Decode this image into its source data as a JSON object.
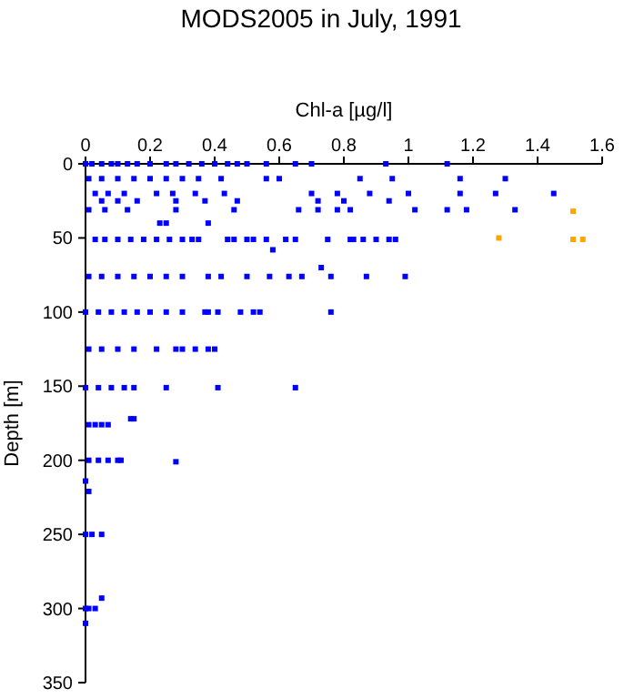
{
  "chart_data": {
    "type": "scatter",
    "title": "MODS2005 in July, 1991",
    "xlabel": "Chl-a [µg/l]",
    "ylabel": "Depth [m]",
    "xlim": [
      0,
      1.6
    ],
    "xticks": [
      0,
      0.2,
      0.4,
      0.6,
      0.8,
      1,
      1.2,
      1.4,
      1.6
    ],
    "ylim": [
      350,
      0
    ],
    "yticks": [
      0,
      50,
      100,
      150,
      200,
      250,
      300,
      350
    ],
    "marker": "square",
    "grid": false,
    "series": [
      {
        "color": "#0000ff",
        "x": [
          0,
          0.02,
          0.05,
          0.08,
          0.1,
          0.13,
          0.16,
          0.2,
          0.25,
          0.28,
          0.32,
          0.36,
          0.4,
          0.44,
          0.47,
          0.5,
          0.56,
          0.65,
          0.7,
          0.93,
          1.12,
          0.01,
          0.05,
          0.1,
          0.15,
          0.2,
          0.25,
          0.3,
          0.35,
          0.42,
          0.56,
          0.6,
          0.85,
          0.95,
          1.16,
          1.3,
          0.03,
          0.07,
          0.12,
          0.22,
          0.27,
          0.34,
          0.43,
          0.7,
          0.78,
          0.88,
          1,
          1.16,
          1.27,
          1.45,
          0.05,
          0.1,
          0.16,
          0.28,
          0.37,
          0.47,
          0.72,
          0.8,
          0.94,
          0.01,
          0.06,
          0.13,
          0.28,
          0.46,
          0.66,
          0.72,
          0.78,
          0.82,
          1.02,
          1.12,
          1.18,
          1.33,
          0.23,
          0.25,
          0.38,
          0.03,
          0.06,
          0.1,
          0.14,
          0.18,
          0.22,
          0.26,
          0.3,
          0.33,
          0.35,
          0.44,
          0.46,
          0.5,
          0.52,
          0.56,
          0.62,
          0.65,
          0.75,
          0.82,
          0.83,
          0.86,
          0.9,
          0.94,
          0.96,
          0.58,
          0.01,
          0.05,
          0.1,
          0.15,
          0.2,
          0.25,
          0.3,
          0.38,
          0.42,
          0.5,
          0.57,
          0.63,
          0.67,
          0.76,
          0.87,
          0.99,
          0.73,
          0,
          0.04,
          0.08,
          0.12,
          0.16,
          0.2,
          0.25,
          0.3,
          0.37,
          0.38,
          0.41,
          0.48,
          0.52,
          0.54,
          0.76,
          0.01,
          0.05,
          0.1,
          0.15,
          0.22,
          0.28,
          0.3,
          0.34,
          0.38,
          0.4,
          0,
          0.04,
          0.08,
          0.12,
          0.15,
          0.25,
          0.41,
          0.65,
          0.01,
          0.03,
          0.05,
          0.07,
          0.14,
          0.15,
          0.01,
          0.04,
          0.07,
          0.1,
          0.11,
          0.28,
          0,
          0.01,
          0,
          0.02,
          0.05,
          0,
          0.01,
          0.03,
          0.05,
          0
        ],
        "values": [
          0,
          0,
          0,
          0,
          0,
          0,
          0,
          0,
          0,
          0,
          0,
          0,
          0,
          0,
          0,
          0,
          0,
          0,
          0,
          0,
          0,
          10,
          10,
          10,
          10,
          10,
          10,
          10,
          10,
          10,
          10,
          10,
          10,
          10,
          10,
          10,
          20,
          20,
          20,
          20,
          20,
          20,
          20,
          20,
          20,
          20,
          20,
          20,
          20,
          20,
          25,
          25,
          25,
          25,
          25,
          25,
          25,
          25,
          25,
          31,
          31,
          31,
          31,
          31,
          31,
          31,
          31,
          31,
          31,
          31,
          31,
          31,
          40,
          40,
          40,
          51,
          51,
          51,
          51,
          51,
          51,
          51,
          51,
          51,
          51,
          51,
          51,
          51,
          51,
          51,
          51,
          51,
          51,
          51,
          51,
          51,
          51,
          51,
          51,
          58,
          76,
          76,
          76,
          76,
          76,
          76,
          76,
          76,
          76,
          76,
          76,
          76,
          76,
          76,
          76,
          76,
          70,
          100,
          100,
          100,
          100,
          100,
          100,
          100,
          100,
          100,
          100,
          100,
          100,
          100,
          100,
          100,
          125,
          125,
          125,
          125,
          125,
          125,
          125,
          125,
          125,
          125,
          151,
          151,
          151,
          151,
          151,
          151,
          151,
          151,
          176,
          176,
          176,
          176,
          172,
          172,
          200,
          200,
          200,
          200,
          200,
          201,
          214,
          221,
          250,
          250,
          250,
          300,
          300,
          300,
          293,
          310
        ]
      },
      {
        "color": "#ffa500",
        "x": [
          1.51,
          1.28,
          1.51,
          1.54
        ],
        "values": [
          32,
          50,
          51,
          51
        ]
      }
    ]
  }
}
